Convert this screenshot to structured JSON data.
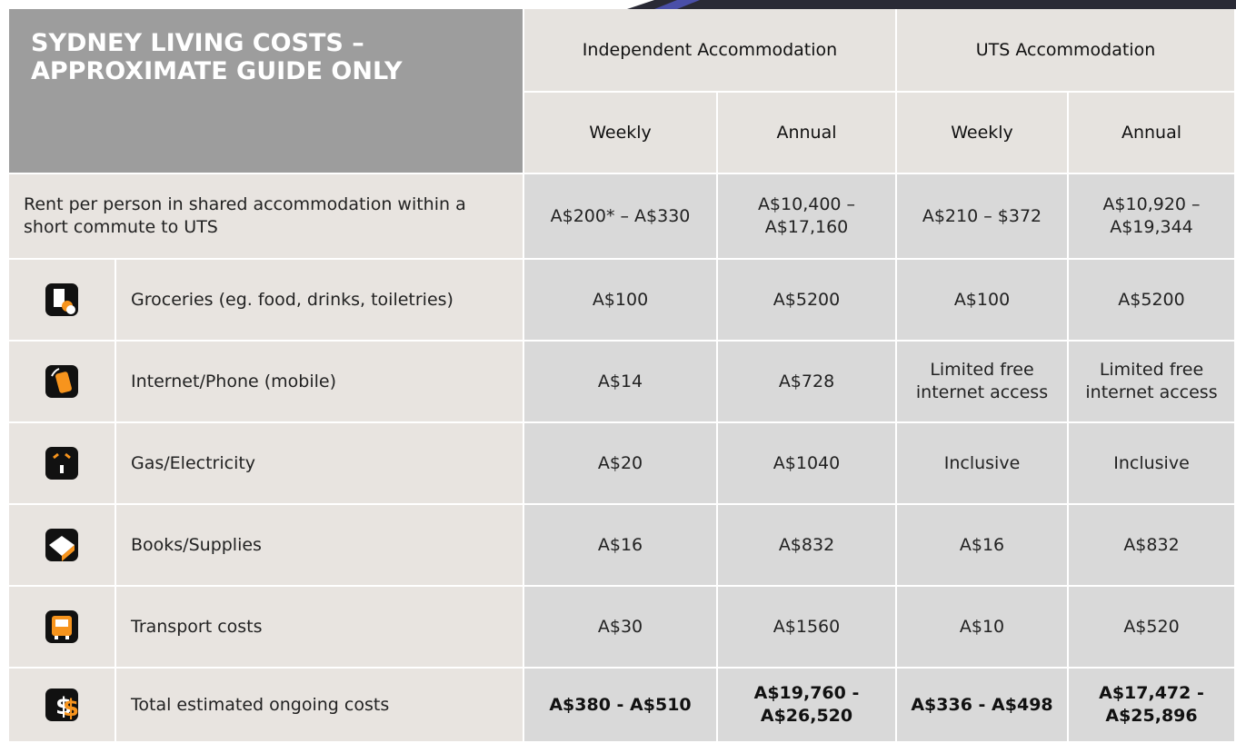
{
  "header": {
    "title": "SYDNEY LIVING COSTS – APPROXIMATE GUIDE ONLY",
    "groups": [
      "Independent Accommodation",
      "UTS Accommodation"
    ],
    "subheaders": [
      "Weekly",
      "Annual",
      "Weekly",
      "Annual"
    ]
  },
  "rows": [
    {
      "label": "Rent per person in shared accommodation within a short commute to UTS",
      "values": [
        "A$200* – A$330",
        "A$10,400 – A$17,160",
        "A$210 – $372",
        "A$10,920 – A$19,344"
      ]
    },
    {
      "label": "Groceries (eg. food, drinks, toiletries)",
      "values": [
        "A$100",
        "A$5200",
        "A$100",
        "A$5200"
      ]
    },
    {
      "label": "Internet/Phone (mobile)",
      "values": [
        "A$14",
        "A$728",
        "Limited free internet access",
        "Limited free internet access"
      ]
    },
    {
      "label": "Gas/Electricity",
      "values": [
        "A$20",
        "A$1040",
        "Inclusive",
        "Inclusive"
      ]
    },
    {
      "label": "Books/Supplies",
      "values": [
        "A$16",
        "A$832",
        "A$16",
        "A$832"
      ]
    },
    {
      "label": "Transport costs",
      "values": [
        "A$30",
        "A$1560",
        "A$10",
        "A$520"
      ]
    },
    {
      "label": "Total estimated ongoing costs",
      "values": [
        "A$380 - A$510",
        "A$19,760 - A$26,520",
        "A$336 - A$498",
        "A$17,472 - A$25,896"
      ]
    }
  ]
}
